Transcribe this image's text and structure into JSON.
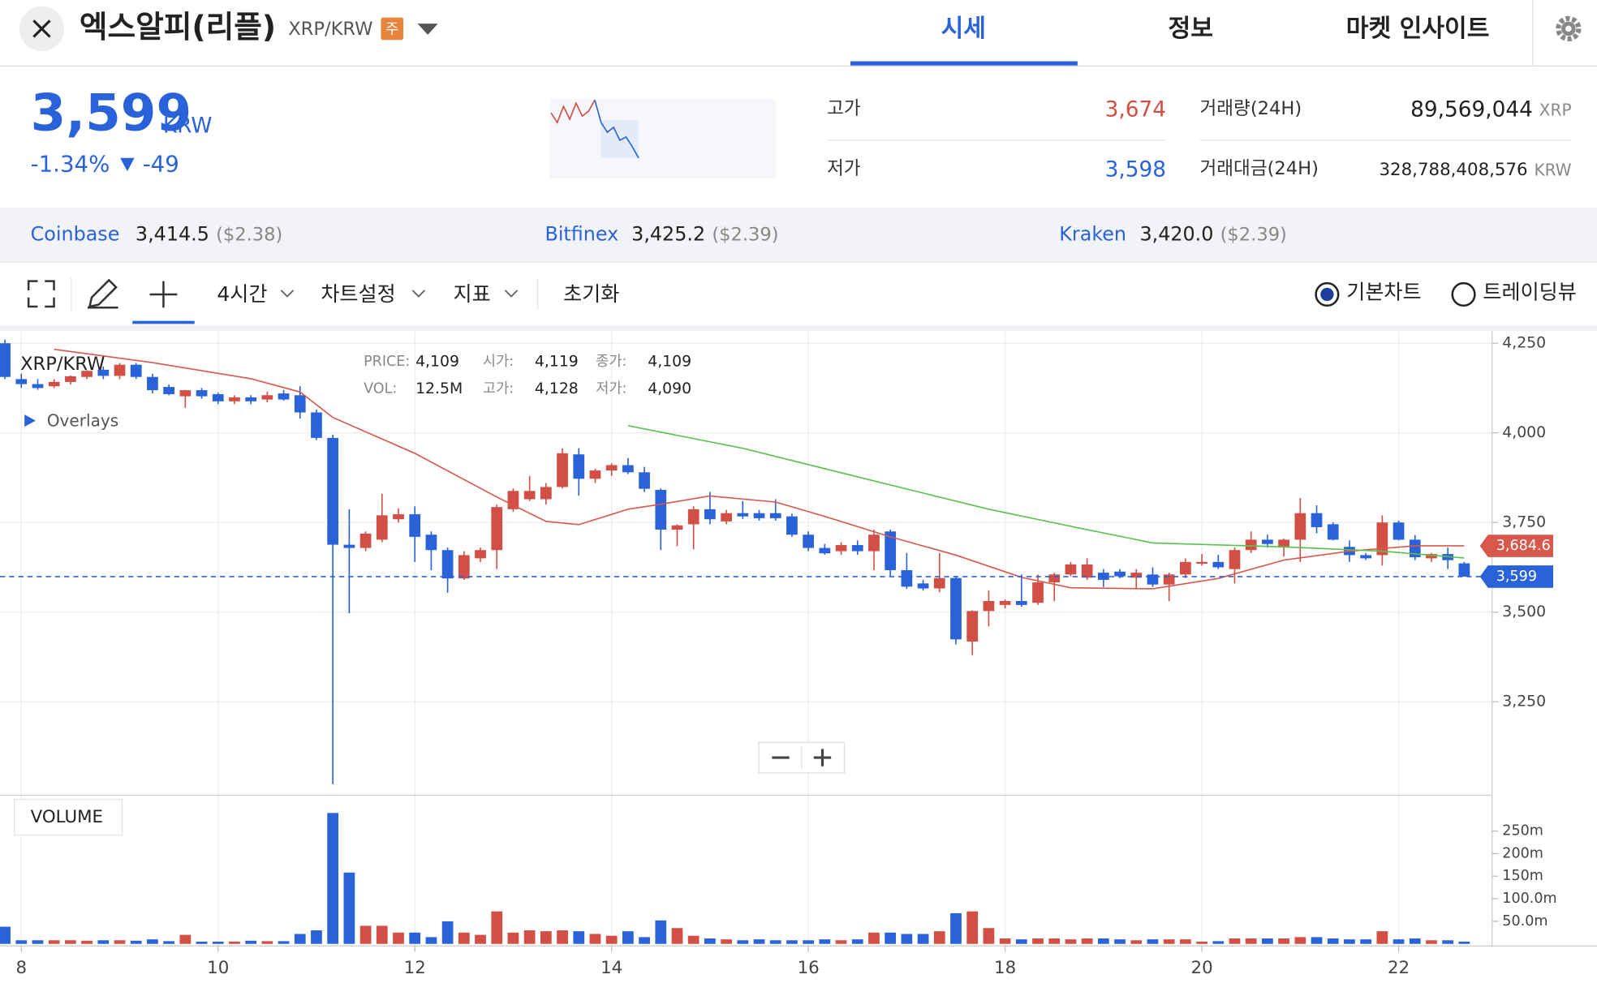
{
  "header": {
    "title": "엑스알피(리플)",
    "pair": "XRP/KRW",
    "badge": "주",
    "tabs": [
      "시세",
      "정보",
      "마켓 인사이트"
    ]
  },
  "price": {
    "value": "3,599",
    "unit": "KRW",
    "change_pct": "-1.34%",
    "change": "-49"
  },
  "stats": {
    "high_label": "고가",
    "high": "3,674",
    "low_label": "저가",
    "low": "3,598",
    "volume_label": "거래량(24H)",
    "volume": "89,569,044",
    "volume_unit": "XRP",
    "amount_label": "거래대금(24H)",
    "amount": "328,788,408,576",
    "amount_unit": "KRW"
  },
  "exchanges": [
    {
      "name": "Coinbase",
      "price": "3,414.5",
      "usd": "($2.38)"
    },
    {
      "name": "Bitfinex",
      "price": "3,425.2",
      "usd": "($2.39)"
    },
    {
      "name": "Kraken",
      "price": "3,420.0",
      "usd": "($2.39)"
    }
  ],
  "toolbar": {
    "interval": "4시간",
    "settings": "차트설정",
    "indicators": "지표",
    "reset": "초기화",
    "basic": "기본차트",
    "tradingview": "트레이딩뷰"
  },
  "info": {
    "symbol": "XRP/KRW",
    "overlays": "Overlays",
    "price_label": "PRICE:",
    "price": "4,109",
    "open_label": "시가:",
    "open": "4,119",
    "close_label": "종가:",
    "close": "4,109",
    "vol_label": "VOL:",
    "vol": "12.5M",
    "high_label": "고가:",
    "high": "4,128",
    "low_label": "저가:",
    "low": "4,090",
    "volume_title": "VOLUME"
  },
  "sparkline": {
    "series": [
      {
        "color": "#d24f45",
        "values": [
          3660,
          3630,
          3680,
          3640,
          3690,
          3650,
          3665,
          3700,
          null,
          null,
          null,
          null,
          null,
          null,
          null
        ]
      },
      {
        "color": "#2a63d9",
        "values": [
          null,
          null,
          null,
          null,
          null,
          null,
          null,
          3700,
          3630,
          3600,
          3615,
          3575,
          3585,
          3555,
          3520
        ]
      }
    ]
  },
  "chart_data": {
    "type": "candlestick",
    "up_color": "#d24f45",
    "down_color": "#2a63d9",
    "x": [
      0,
      1,
      2,
      3,
      4,
      5,
      6,
      7,
      8,
      9,
      10,
      11,
      12,
      13,
      14,
      15,
      16,
      17,
      18,
      19,
      20,
      21,
      22,
      23,
      24,
      25,
      26,
      27,
      28,
      29,
      30,
      31,
      32,
      33,
      34,
      35,
      36,
      37,
      38,
      39,
      40,
      41,
      42,
      43,
      44,
      45,
      46,
      47,
      48,
      49,
      50,
      51,
      52,
      53,
      54,
      55,
      56,
      57,
      58,
      59,
      60,
      61,
      62,
      63,
      64,
      65,
      66,
      67,
      68,
      69,
      70,
      71,
      72,
      73,
      74,
      75,
      76,
      77,
      78,
      79,
      80,
      81,
      82,
      83,
      84,
      85,
      86,
      87,
      88,
      89
    ],
    "open": [
      4250,
      4150,
      4136,
      4130,
      4142,
      4156,
      4176,
      4159,
      4190,
      4156,
      4128,
      4102,
      4119,
      4108,
      4088,
      4099,
      4093,
      4110,
      4105,
      4057,
      3986,
      3688,
      3679,
      3702,
      3759,
      3773,
      3716,
      3673,
      3594,
      3650,
      3673,
      3787,
      3815,
      3815,
      3849,
      3940,
      3872,
      3895,
      3910,
      3890,
      3841,
      3730,
      3745,
      3787,
      3753,
      3776,
      3776,
      3776,
      3767,
      3716,
      3679,
      3670,
      3687,
      3670,
      3725,
      3617,
      3580,
      3566,
      3595,
      3418,
      3503,
      3520,
      3531,
      3526,
      3583,
      3605,
      3596,
      3610,
      3613,
      3596,
      3605,
      3577,
      3605,
      3635,
      3640,
      3620,
      3673,
      3702,
      3680,
      3702,
      3776,
      3745,
      3682,
      3659,
      3659,
      3750,
      3702,
      3650,
      3662,
      3636
    ],
    "high": [
      4260,
      4165,
      4150,
      4150,
      4160,
      4175,
      4185,
      4195,
      4195,
      4165,
      4135,
      4120,
      4125,
      4112,
      4105,
      4105,
      4115,
      4120,
      4130,
      4065,
      3995,
      3787,
      3725,
      3830,
      3790,
      3795,
      3725,
      3680,
      3670,
      3680,
      3800,
      3845,
      3880,
      3860,
      3957,
      3957,
      3900,
      3915,
      3930,
      3905,
      3845,
      3745,
      3795,
      3835,
      3785,
      3810,
      3785,
      3815,
      3775,
      3725,
      3690,
      3695,
      3700,
      3730,
      3730,
      3665,
      3590,
      3665,
      3600,
      3505,
      3560,
      3535,
      3605,
      3605,
      3610,
      3640,
      3650,
      3620,
      3620,
      3620,
      3625,
      3610,
      3650,
      3662,
      3660,
      3680,
      3725,
      3716,
      3705,
      3818,
      3798,
      3750,
      3700,
      3665,
      3770,
      3755,
      3715,
      3665,
      3680,
      3640
    ],
    "low": [
      4150,
      4125,
      4120,
      4125,
      4135,
      4150,
      4150,
      4150,
      4150,
      4110,
      4105,
      4070,
      4095,
      4080,
      4080,
      4080,
      4085,
      4090,
      4040,
      3980,
      3020,
      3497,
      3670,
      3695,
      3750,
      3640,
      3617,
      3554,
      3590,
      3640,
      3620,
      3780,
      3810,
      3800,
      3845,
      3825,
      3860,
      3880,
      3885,
      3835,
      3673,
      3684,
      3675,
      3745,
      3745,
      3760,
      3755,
      3755,
      3710,
      3670,
      3660,
      3660,
      3660,
      3617,
      3600,
      3565,
      3560,
      3555,
      3410,
      3380,
      3460,
      3510,
      3515,
      3520,
      3530,
      3600,
      3590,
      3570,
      3595,
      3565,
      3570,
      3530,
      3595,
      3630,
      3620,
      3580,
      3665,
      3680,
      3655,
      3640,
      3720,
      3700,
      3640,
      3645,
      3630,
      3700,
      3645,
      3640,
      3620,
      3599
    ],
    "close": [
      4156,
      4136,
      4125,
      4142,
      4158,
      4173,
      4159,
      4190,
      4156,
      4119,
      4108,
      4119,
      4102,
      4088,
      4099,
      4088,
      4105,
      4093,
      4057,
      3986,
      3688,
      3679,
      3719,
      3770,
      3773,
      3710,
      3673,
      3594,
      3659,
      3673,
      3793,
      3838,
      3838,
      3849,
      3943,
      3872,
      3895,
      3910,
      3890,
      3844,
      3730,
      3742,
      3787,
      3759,
      3776,
      3767,
      3762,
      3762,
      3716,
      3679,
      3664,
      3687,
      3670,
      3716,
      3617,
      3571,
      3566,
      3595,
      3424,
      3503,
      3531,
      3531,
      3520,
      3583,
      3605,
      3633,
      3633,
      3590,
      3600,
      3610,
      3577,
      3605,
      3640,
      3640,
      3625,
      3673,
      3702,
      3690,
      3702,
      3776,
      3737,
      3702,
      3659,
      3650,
      3750,
      3702,
      3653,
      3662,
      3645,
      3599
    ],
    "volume": [
      38,
      8,
      8,
      8,
      8,
      7,
      8,
      8,
      7,
      10,
      6,
      20,
      5,
      5,
      5,
      7,
      6,
      6,
      22,
      30,
      290,
      158,
      40,
      40,
      25,
      25,
      15,
      50,
      25,
      20,
      72,
      25,
      30,
      28,
      30,
      28,
      22,
      18,
      28,
      15,
      52,
      35,
      18,
      12,
      10,
      8,
      10,
      8,
      8,
      8,
      10,
      8,
      10,
      25,
      25,
      22,
      22,
      28,
      68,
      72,
      35,
      12,
      10,
      12,
      12,
      10,
      12,
      12,
      10,
      8,
      10,
      10,
      10,
      5,
      6,
      12,
      12,
      12,
      12,
      15,
      15,
      12,
      10,
      10,
      28,
      10,
      12,
      8,
      8,
      5
    ],
    "overlays": [
      {
        "color": "#d9584c",
        "x": [
          3,
          9,
          15,
          18,
          20,
          25,
          30,
          33,
          35,
          38,
          40,
          43,
          47,
          50,
          54,
          58,
          62,
          65,
          70,
          74,
          78,
          82,
          86,
          89
        ],
        "values": [
          4233,
          4196,
          4151,
          4114,
          4043,
          3943,
          3821,
          3753,
          3744,
          3787,
          3801,
          3824,
          3807,
          3767,
          3710,
          3659,
          3597,
          3568,
          3565,
          3594,
          3645,
          3670,
          3685,
          3685
        ]
      },
      {
        "color": "#5cc24f",
        "x": [
          38,
          45,
          53,
          60,
          66,
          70,
          78,
          84,
          89
        ],
        "values": [
          4020,
          3957,
          3866,
          3787,
          3730,
          3693,
          3682,
          3670,
          3651
        ]
      }
    ],
    "price_markers": [
      {
        "value": 3684.6,
        "label": "3,684.6",
        "color": "#d9584c"
      },
      {
        "value": 3599,
        "label": "3,599",
        "color": "#2a63d9"
      }
    ],
    "xlim": [
      -0.3,
      90.7
    ],
    "xticks": [
      {
        "value": 1,
        "label": "8"
      },
      {
        "value": 13,
        "label": "10"
      },
      {
        "value": 25,
        "label": "12"
      },
      {
        "value": 37,
        "label": "14"
      },
      {
        "value": 49,
        "label": "16"
      },
      {
        "value": 61,
        "label": "18"
      },
      {
        "value": 73,
        "label": "20"
      },
      {
        "value": 85,
        "label": "22"
      }
    ],
    "ylim": [
      2992,
      4284
    ],
    "yticks": [
      {
        "value": 3250,
        "label": "3,250"
      },
      {
        "value": 3500,
        "label": "3,500"
      },
      {
        "value": 3750,
        "label": "3,750"
      },
      {
        "value": 4000,
        "label": "4,000"
      },
      {
        "value": 4250,
        "label": "4,250"
      }
    ],
    "vlim": [
      0,
      327
    ],
    "vticks": [
      {
        "value": 50,
        "label": "50.0m"
      },
      {
        "value": 100,
        "label": "100.0m"
      },
      {
        "value": 150,
        "label": "150m"
      },
      {
        "value": 200,
        "label": "200m"
      },
      {
        "value": 250,
        "label": "250m"
      }
    ],
    "grid": true
  }
}
